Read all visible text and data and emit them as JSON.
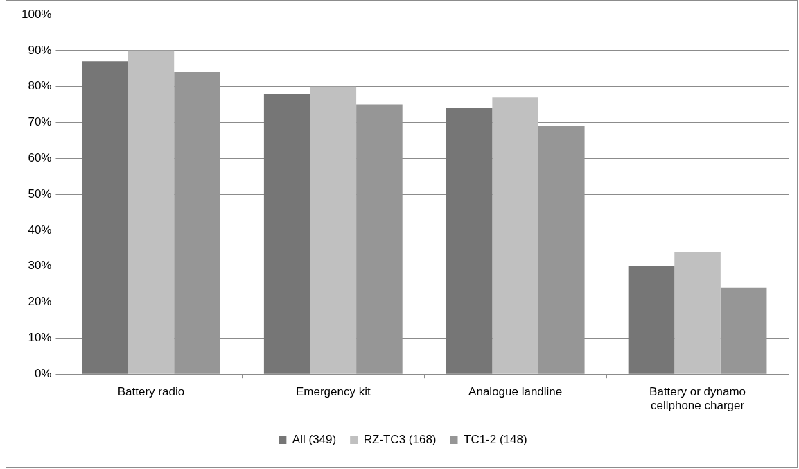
{
  "chart_data": {
    "type": "bar",
    "categories": [
      "Battery radio",
      "Emergency kit",
      "Analogue landline",
      "Battery or dynamo cellphone charger"
    ],
    "series": [
      {
        "name": "All (349)",
        "color": "#767676",
        "values": [
          87,
          78,
          74,
          30
        ]
      },
      {
        "name": "RZ-TC3 (168)",
        "color": "#c0c0c0",
        "values": [
          90,
          80,
          77,
          34
        ]
      },
      {
        "name": "TC1-2 (148)",
        "color": "#969696",
        "values": [
          84,
          75,
          69,
          24
        ]
      }
    ],
    "ylim": [
      0,
      100
    ],
    "yticks": [
      {
        "value": 0,
        "label": "0%"
      },
      {
        "value": 10,
        "label": "10%"
      },
      {
        "value": 20,
        "label": "20%"
      },
      {
        "value": 30,
        "label": "30%"
      },
      {
        "value": 40,
        "label": "40%"
      },
      {
        "value": 50,
        "label": "50%"
      },
      {
        "value": 60,
        "label": "60%"
      },
      {
        "value": 70,
        "label": "70%"
      },
      {
        "value": 80,
        "label": "80%"
      },
      {
        "value": 90,
        "label": "90%"
      },
      {
        "value": 100,
        "label": "100%"
      }
    ],
    "grid": "y",
    "legend": "bottom"
  }
}
